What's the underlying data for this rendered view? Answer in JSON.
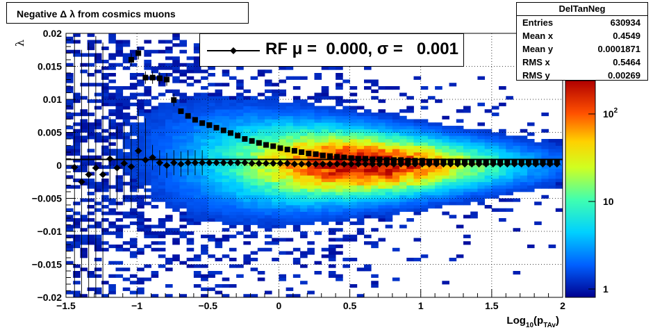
{
  "title": "Negative Δ λ from cosmics muons",
  "stats": {
    "name": "DelTanNeg",
    "rows": [
      {
        "key": "Entries",
        "value": "630934"
      },
      {
        "key": "Mean x",
        "value": "0.4549"
      },
      {
        "key": "Mean y",
        "value": "0.0001871"
      },
      {
        "key": "RMS x",
        "value": "0.5464"
      },
      {
        "key": "RMS y",
        "value": "0.00269"
      }
    ]
  },
  "legend": {
    "label": "RF μ =  0.000, σ =   0.001"
  },
  "chart_data": {
    "type": "heatmap",
    "xlabel": "Log10(pTAv)",
    "ylabel": "λ",
    "xlim": [
      -1.5,
      2
    ],
    "ylim": [
      -0.02,
      0.02
    ],
    "xticks": [
      "−1.5",
      "−1",
      "−0.5",
      "0",
      "0.5",
      "1",
      "1.5",
      "2"
    ],
    "yticks": [
      "0.02",
      "0.015",
      "0.01",
      "0.005",
      "0",
      "−0.005",
      "−0.01",
      "−0.015",
      "−0.02"
    ],
    "grid": true,
    "colorbar": {
      "scale": "log",
      "ticks": [
        "1",
        "10",
        "10²"
      ]
    },
    "series": [
      {
        "name": "RF",
        "marker": "diamond",
        "x": [
          -1.44,
          -1.39,
          -1.34,
          -1.29,
          -1.24,
          -1.19,
          -1.14,
          -1.09,
          -1.04,
          -0.99,
          -0.94,
          -0.89,
          -0.84,
          -0.79,
          -0.74,
          -0.69,
          -0.64,
          -0.59,
          -0.54,
          -0.49,
          -0.44,
          -0.39,
          -0.34,
          -0.29,
          -0.24,
          -0.19,
          -0.14,
          -0.09,
          -0.04,
          0.01,
          0.06,
          0.11,
          0.16,
          0.21,
          0.26,
          0.31,
          0.36,
          0.41,
          0.46,
          0.51,
          0.56,
          0.61,
          0.66,
          0.71,
          0.76,
          0.81,
          0.86,
          0.91,
          0.96,
          1.01,
          1.06,
          1.11,
          1.16,
          1.21,
          1.26,
          1.31,
          1.36,
          1.41,
          1.46,
          1.51,
          1.56,
          1.61,
          1.66,
          1.71,
          1.76,
          1.81,
          1.86,
          1.91,
          1.96
        ],
        "y": [
          -0.0003,
          -0.0025,
          -0.0014,
          -0.0004,
          -0.0014,
          0.001,
          -0.0004,
          0.0003,
          -0.0002,
          0.0022,
          0.0008,
          0.0012,
          0.0004,
          0.0,
          0.0004,
          0.0002,
          0.0004,
          0.0004,
          0.0004,
          0.0004,
          0.0004,
          0.0004,
          0.0004,
          0.0004,
          0.0004,
          0.0003,
          0.0003,
          0.0003,
          0.0003,
          0.0003,
          0.0003,
          0.0002,
          0.0002,
          0.0002,
          0.0002,
          0.0002,
          0.0002,
          0.0002,
          0.0002,
          0.0002,
          0.0002,
          0.0002,
          0.0002,
          0.0002,
          0.0002,
          0.0002,
          0.0002,
          0.0002,
          0.0002,
          0.0002,
          0.0002,
          0.0002,
          0.0002,
          0.0002,
          0.0002,
          0.0002,
          0.0002,
          0.0002,
          0.0002,
          0.0002,
          0.0002,
          0.0002,
          0.0002,
          0.0002,
          0.0002,
          0.0002,
          0.0002,
          0.0002,
          0.0002
        ]
      },
      {
        "name": "",
        "marker": "square",
        "x": [
          -1.04,
          -0.99,
          -0.94,
          -0.89,
          -0.84,
          -0.79,
          -0.74,
          -0.69,
          -0.64,
          -0.59,
          -0.54,
          -0.49,
          -0.44,
          -0.39,
          -0.34,
          -0.29,
          -0.24,
          -0.19,
          -0.14,
          -0.09,
          -0.04,
          0.01,
          0.06,
          0.11,
          0.16,
          0.21,
          0.26,
          0.31,
          0.36,
          0.41,
          0.46,
          0.51,
          0.56,
          0.61,
          0.66,
          0.71,
          0.76,
          0.81,
          0.86,
          0.91,
          0.96,
          1.01,
          1.06,
          1.11,
          1.16,
          1.21,
          1.26,
          1.31,
          1.36,
          1.41,
          1.46,
          1.51,
          1.56,
          1.61,
          1.66,
          1.71,
          1.76,
          1.81,
          1.86,
          1.91,
          1.96
        ],
        "y": [
          0.016,
          0.017,
          0.0133,
          0.0133,
          0.0132,
          0.013,
          0.0099,
          0.0082,
          0.0075,
          0.0069,
          0.0064,
          0.0061,
          0.0057,
          0.0053,
          0.0049,
          0.0045,
          0.004,
          0.0037,
          0.0034,
          0.0031,
          0.0029,
          0.0026,
          0.0024,
          0.0022,
          0.002,
          0.0018,
          0.0017,
          0.0015,
          0.0014,
          0.0013,
          0.0012,
          0.0011,
          0.001,
          0.001,
          0.0009,
          0.0009,
          0.0008,
          0.0008,
          0.0008,
          0.0007,
          0.0007,
          0.0007,
          0.0006,
          0.0006,
          0.0006,
          0.0006,
          0.0006,
          0.0005,
          0.0005,
          0.0005,
          0.0005,
          0.0005,
          0.0005,
          0.0005,
          0.0005,
          0.0005,
          0.0005,
          0.0005,
          0.0005,
          0.0005,
          0.0005
        ]
      }
    ]
  }
}
